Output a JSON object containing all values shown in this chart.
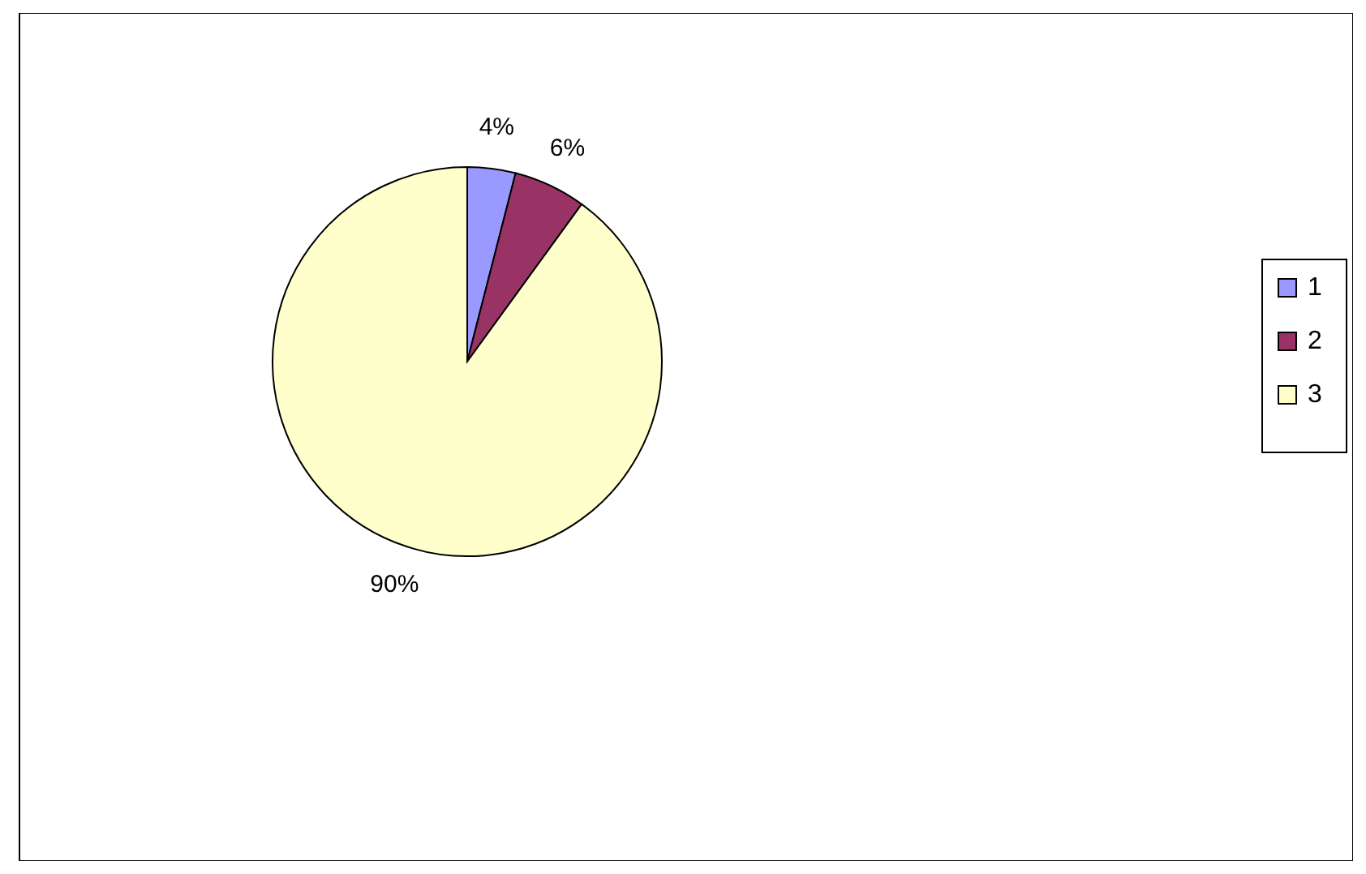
{
  "chart_data": {
    "type": "pie",
    "categories": [
      "1",
      "2",
      "3"
    ],
    "values": [
      4,
      6,
      90
    ],
    "colors": [
      "#9999ff",
      "#993366",
      "#ffffcc"
    ],
    "value_labels": [
      "4%",
      "6%",
      "90%"
    ],
    "legend": "right"
  }
}
